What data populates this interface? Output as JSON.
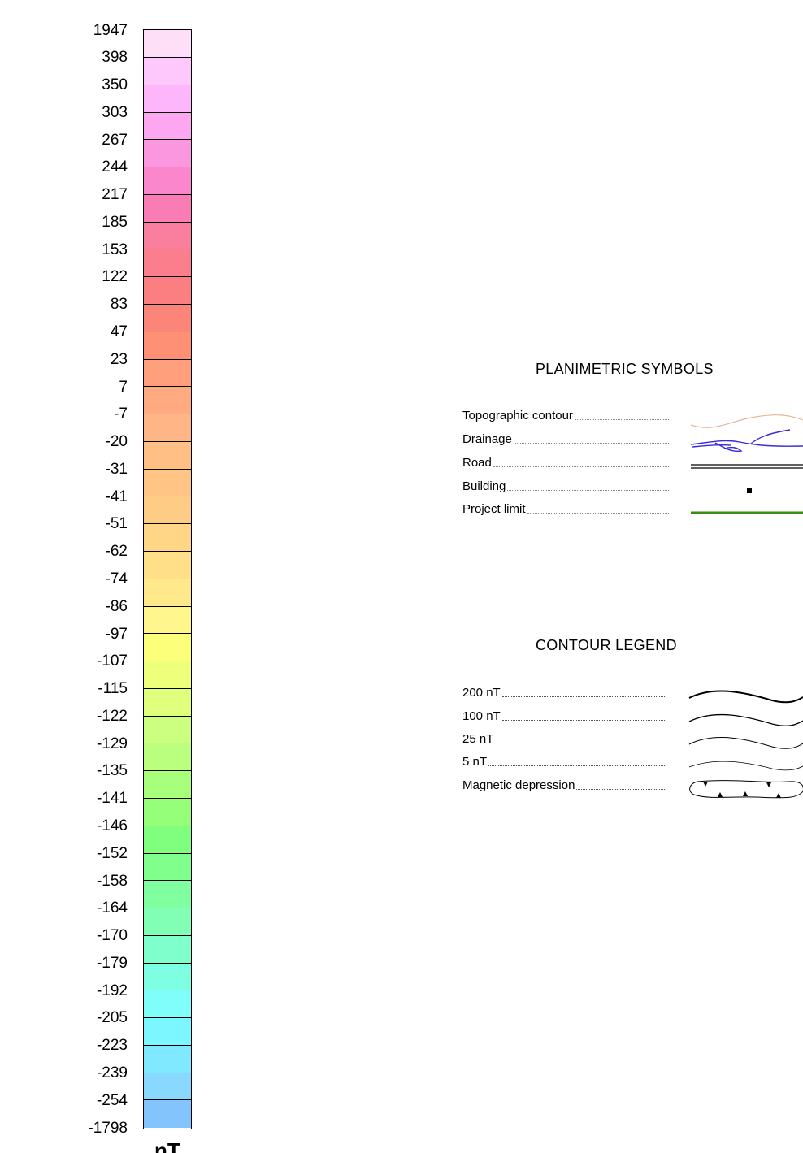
{
  "scale": {
    "unit": "nT",
    "labels": [
      "1947",
      "398",
      "350",
      "303",
      "267",
      "244",
      "217",
      "185",
      "153",
      "122",
      "83",
      "47",
      "23",
      "7",
      "-7",
      "-20",
      "-31",
      "-41",
      "-51",
      "-62",
      "-74",
      "-86",
      "-97",
      "-107",
      "-115",
      "-122",
      "-129",
      "-135",
      "-141",
      "-146",
      "-152",
      "-158",
      "-164",
      "-170",
      "-179",
      "-192",
      "-205",
      "-223",
      "-239",
      "-254",
      "-1798"
    ],
    "colors": [
      "#fde0f7",
      "#fdc8fb",
      "#fdb6fa",
      "#fca7ef",
      "#fb97df",
      "#fa86cc",
      "#f97cb4",
      "#fa7f9e",
      "#fa7e8b",
      "#fb7f80",
      "#fc8579",
      "#fe9076",
      "#ff9f7b",
      "#ffaa80",
      "#ffb686",
      "#ffbf85",
      "#ffc585",
      "#ffcc85",
      "#ffd685",
      "#ffdf87",
      "#ffe98a",
      "#fff68d",
      "#fcff7a",
      "#eeff7c",
      "#dfff7d",
      "#ccff7f",
      "#baff7d",
      "#a8ff7b",
      "#95ff7a",
      "#80ff7f",
      "#80ff8c",
      "#80ffa0",
      "#80ffb5",
      "#7fffcb",
      "#7fffe2",
      "#80fffa",
      "#7df7ff",
      "#80e8ff",
      "#88d8ff",
      "#84c4fd"
    ]
  },
  "planimetric": {
    "title": "PLANIMETRIC SYMBOLS",
    "items": [
      {
        "label": "Topographic contour",
        "color": "#e6b79a"
      },
      {
        "label": "Drainage",
        "color": "#3a2bd8"
      },
      {
        "label": "Road",
        "color": "#000000"
      },
      {
        "label": "Building",
        "color": "#000000"
      },
      {
        "label": "Project limit",
        "color": "#3a8c12"
      }
    ]
  },
  "contour": {
    "title": "CONTOUR LEGEND",
    "items": [
      {
        "label": "200 nT"
      },
      {
        "label": "100 nT"
      },
      {
        "label": "25 nT"
      },
      {
        "label": "5 nT"
      },
      {
        "label": "Magnetic depression"
      }
    ]
  }
}
